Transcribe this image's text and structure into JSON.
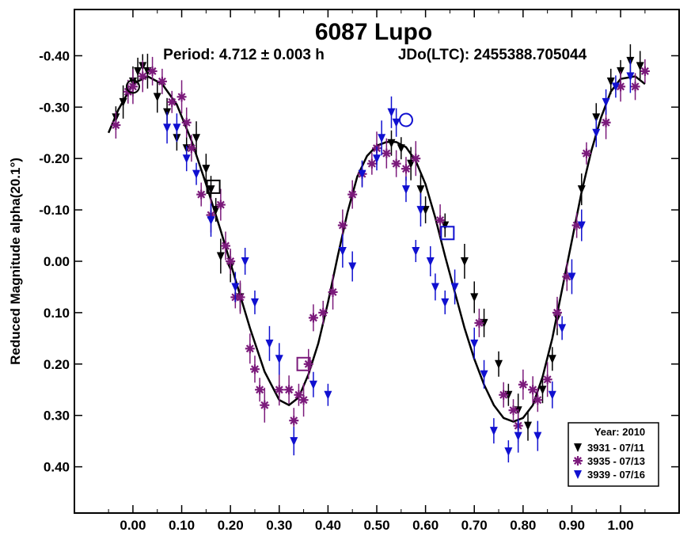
{
  "chart_data": {
    "type": "scatter",
    "title": "6087 Lupo",
    "period_label": "Period: 4.712 ± 0.003 h",
    "epoch_label": "JDo(LTC): 2455388.705044",
    "xlabel": "",
    "ylabel": "Reduced Magnitude alpha(20.1°)",
    "xlim": [
      -0.12,
      1.12
    ],
    "ylim": [
      0.49,
      -0.49
    ],
    "y_inverted": true,
    "grid": false,
    "x_ticks": [
      "0.00",
      "0.10",
      "0.20",
      "0.30",
      "0.40",
      "0.50",
      "0.60",
      "0.70",
      "0.80",
      "0.90",
      "1.00"
    ],
    "x_tick_values": [
      0.0,
      0.1,
      0.2,
      0.3,
      0.4,
      0.5,
      0.6,
      0.7,
      0.8,
      0.9,
      1.0
    ],
    "y_ticks": [
      "-0.40",
      "-0.30",
      "-0.20",
      "-0.10",
      "0.00",
      "0.10",
      "0.20",
      "0.30",
      "0.40"
    ],
    "y_tick_values": [
      -0.4,
      -0.3,
      -0.2,
      -0.1,
      0.0,
      0.1,
      0.2,
      0.3,
      0.4
    ],
    "legend": {
      "title": "Year: 2010",
      "placement": "bottom-right",
      "entries": [
        "3931 - 07/11",
        "3935 - 07/13",
        "3939 - 07/16"
      ]
    },
    "fit_curve": {
      "color": "#000000",
      "points": [
        [
          -0.05,
          -0.25
        ],
        [
          -0.03,
          -0.295
        ],
        [
          0.0,
          -0.345
        ],
        [
          0.03,
          -0.36
        ],
        [
          0.06,
          -0.345
        ],
        [
          0.09,
          -0.305
        ],
        [
          0.12,
          -0.235
        ],
        [
          0.15,
          -0.15
        ],
        [
          0.18,
          -0.06
        ],
        [
          0.21,
          0.035
        ],
        [
          0.24,
          0.13
        ],
        [
          0.27,
          0.215
        ],
        [
          0.3,
          0.27
        ],
        [
          0.32,
          0.28
        ],
        [
          0.34,
          0.265
        ],
        [
          0.36,
          0.22
        ],
        [
          0.38,
          0.16
        ],
        [
          0.4,
          0.08
        ],
        [
          0.42,
          -0.01
        ],
        [
          0.44,
          -0.095
        ],
        [
          0.46,
          -0.165
        ],
        [
          0.48,
          -0.205
        ],
        [
          0.5,
          -0.225
        ],
        [
          0.52,
          -0.232
        ],
        [
          0.54,
          -0.232
        ],
        [
          0.56,
          -0.222
        ],
        [
          0.58,
          -0.195
        ],
        [
          0.6,
          -0.15
        ],
        [
          0.62,
          -0.085
        ],
        [
          0.64,
          -0.01
        ],
        [
          0.66,
          0.06
        ],
        [
          0.68,
          0.13
        ],
        [
          0.7,
          0.19
        ],
        [
          0.72,
          0.24
        ],
        [
          0.74,
          0.28
        ],
        [
          0.76,
          0.305
        ],
        [
          0.78,
          0.312
        ],
        [
          0.8,
          0.305
        ],
        [
          0.82,
          0.28
        ],
        [
          0.84,
          0.225
        ],
        [
          0.86,
          0.15
        ],
        [
          0.88,
          0.055
        ],
        [
          0.9,
          -0.04
        ],
        [
          0.92,
          -0.135
        ],
        [
          0.94,
          -0.215
        ],
        [
          0.96,
          -0.28
        ],
        [
          0.98,
          -0.33
        ],
        [
          1.0,
          -0.355
        ],
        [
          1.03,
          -0.36
        ],
        [
          1.05,
          -0.345
        ]
      ]
    },
    "series": [
      {
        "name": "3931 - 07/11",
        "marker": "triangle-down",
        "color": "#000000",
        "points": [
          [
            -0.035,
            -0.28
          ],
          [
            -0.02,
            -0.31
          ],
          [
            0.0,
            -0.35
          ],
          [
            0.01,
            -0.37
          ],
          [
            0.02,
            -0.38
          ],
          [
            0.03,
            -0.37
          ],
          [
            0.05,
            -0.32
          ],
          [
            0.07,
            -0.29
          ],
          [
            0.09,
            -0.24
          ],
          [
            0.11,
            -0.22
          ],
          [
            0.13,
            -0.24
          ],
          [
            0.15,
            -0.18
          ],
          [
            0.16,
            -0.14
          ],
          [
            0.17,
            -0.1
          ],
          [
            0.18,
            -0.01
          ],
          [
            0.2,
            0.01
          ],
          [
            0.22,
            0.07
          ],
          [
            0.53,
            -0.23
          ],
          [
            0.55,
            -0.22
          ],
          [
            0.57,
            -0.19
          ],
          [
            0.59,
            -0.14
          ],
          [
            0.6,
            -0.1
          ],
          [
            0.64,
            -0.07
          ],
          [
            0.68,
            0.0
          ],
          [
            0.7,
            0.07
          ],
          [
            0.72,
            0.12
          ],
          [
            0.75,
            0.2
          ],
          [
            0.77,
            0.26
          ],
          [
            0.79,
            0.29
          ],
          [
            0.81,
            0.32
          ],
          [
            0.84,
            0.25
          ],
          [
            0.86,
            0.19
          ],
          [
            0.87,
            0.11
          ],
          [
            0.92,
            -0.14
          ],
          [
            0.95,
            -0.28
          ],
          [
            0.98,
            -0.35
          ],
          [
            1.0,
            -0.37
          ],
          [
            1.02,
            -0.39
          ],
          [
            1.04,
            -0.38
          ]
        ]
      },
      {
        "name": "3935 - 07/13",
        "marker": "asterisk",
        "color": "#7b1a7b",
        "points": [
          [
            -0.035,
            -0.265
          ],
          [
            -0.01,
            -0.33
          ],
          [
            0.0,
            -0.34
          ],
          [
            0.02,
            -0.36
          ],
          [
            0.04,
            -0.37
          ],
          [
            0.06,
            -0.35
          ],
          [
            0.08,
            -0.31
          ],
          [
            0.1,
            -0.32
          ],
          [
            0.11,
            -0.27
          ],
          [
            0.12,
            -0.22
          ],
          [
            0.14,
            -0.13
          ],
          [
            0.16,
            -0.09
          ],
          [
            0.18,
            -0.11
          ],
          [
            0.19,
            -0.03
          ],
          [
            0.2,
            0.0
          ],
          [
            0.21,
            0.07
          ],
          [
            0.22,
            0.07
          ],
          [
            0.24,
            0.17
          ],
          [
            0.25,
            0.21
          ],
          [
            0.26,
            0.25
          ],
          [
            0.27,
            0.28
          ],
          [
            0.3,
            0.25
          ],
          [
            0.32,
            0.25
          ],
          [
            0.33,
            0.31
          ],
          [
            0.34,
            0.26
          ],
          [
            0.35,
            0.27
          ],
          [
            0.36,
            0.2
          ],
          [
            0.37,
            0.11
          ],
          [
            0.39,
            0.1
          ],
          [
            0.41,
            0.06
          ],
          [
            0.43,
            -0.07
          ],
          [
            0.45,
            -0.13
          ],
          [
            0.47,
            -0.17
          ],
          [
            0.49,
            -0.19
          ],
          [
            0.5,
            -0.22
          ],
          [
            0.52,
            -0.21
          ],
          [
            0.54,
            -0.19
          ],
          [
            0.56,
            -0.18
          ],
          [
            0.58,
            -0.2
          ],
          [
            0.63,
            -0.08
          ],
          [
            0.71,
            0.12
          ],
          [
            0.76,
            0.26
          ],
          [
            0.78,
            0.29
          ],
          [
            0.79,
            0.32
          ],
          [
            0.8,
            0.24
          ],
          [
            0.82,
            0.25
          ],
          [
            0.83,
            0.27
          ],
          [
            0.85,
            0.23
          ],
          [
            0.87,
            0.1
          ],
          [
            0.89,
            0.03
          ],
          [
            0.91,
            -0.07
          ],
          [
            0.93,
            -0.21
          ],
          [
            0.97,
            -0.27
          ],
          [
            1.0,
            -0.34
          ],
          [
            1.03,
            -0.34
          ],
          [
            1.05,
            -0.37
          ]
        ]
      },
      {
        "name": "3939 - 07/16",
        "marker": "triangle-down",
        "color": "#1010d0",
        "points": [
          [
            0.07,
            -0.26
          ],
          [
            0.09,
            -0.26
          ],
          [
            0.11,
            -0.2
          ],
          [
            0.13,
            -0.17
          ],
          [
            0.16,
            -0.08
          ],
          [
            0.21,
            0.05
          ],
          [
            0.23,
            0.0
          ],
          [
            0.25,
            0.08
          ],
          [
            0.28,
            0.16
          ],
          [
            0.3,
            0.19
          ],
          [
            0.33,
            0.35
          ],
          [
            0.37,
            0.24
          ],
          [
            0.4,
            0.26
          ],
          [
            0.43,
            -0.02
          ],
          [
            0.45,
            0.01
          ],
          [
            0.47,
            -0.17
          ],
          [
            0.5,
            -0.2
          ],
          [
            0.51,
            -0.24
          ],
          [
            0.53,
            -0.29
          ],
          [
            0.54,
            -0.27
          ],
          [
            0.56,
            -0.14
          ],
          [
            0.58,
            -0.02
          ],
          [
            0.59,
            -0.1
          ],
          [
            0.61,
            0.0
          ],
          [
            0.62,
            0.05
          ],
          [
            0.64,
            0.08
          ],
          [
            0.66,
            0.05
          ],
          [
            0.7,
            0.16
          ],
          [
            0.72,
            0.22
          ],
          [
            0.74,
            0.33
          ],
          [
            0.77,
            0.37
          ],
          [
            0.79,
            0.34
          ],
          [
            0.83,
            0.34
          ],
          [
            0.86,
            0.26
          ],
          [
            0.88,
            0.13
          ],
          [
            0.9,
            0.03
          ],
          [
            0.92,
            -0.07
          ],
          [
            0.95,
            -0.25
          ],
          [
            0.97,
            -0.31
          ],
          [
            0.99,
            -0.34
          ],
          [
            1.02,
            -0.36
          ]
        ]
      }
    ],
    "highlight_markers": [
      {
        "shape": "circle",
        "color": "#000000",
        "point": [
          0.0,
          -0.34
        ]
      },
      {
        "shape": "square",
        "color": "#000000",
        "point": [
          0.165,
          -0.145
        ]
      },
      {
        "shape": "square",
        "color": "#7b1a7b",
        "point": [
          0.35,
          0.2
        ]
      },
      {
        "shape": "circle",
        "color": "#1010d0",
        "point": [
          0.56,
          -0.275
        ]
      },
      {
        "shape": "square",
        "color": "#1010d0",
        "point": [
          0.645,
          -0.055
        ]
      }
    ]
  }
}
